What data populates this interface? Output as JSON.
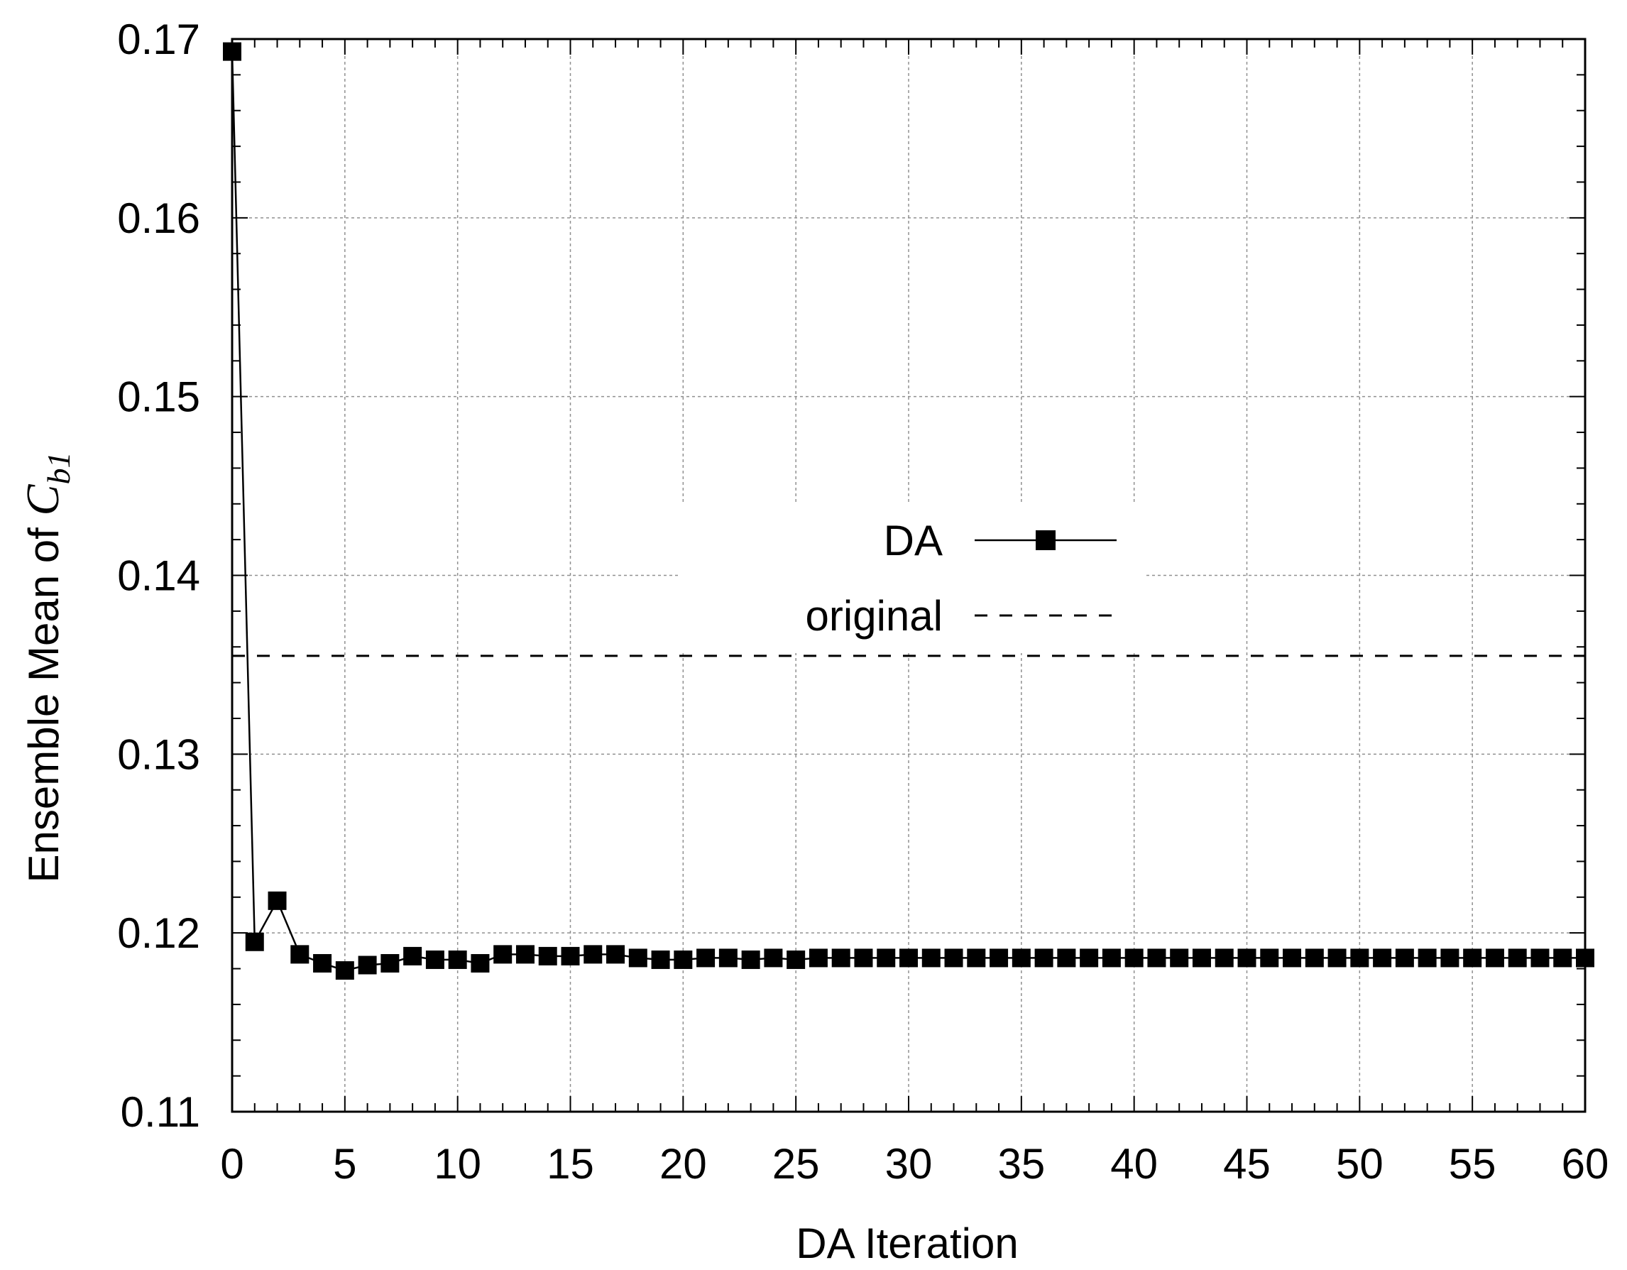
{
  "chart_data": {
    "type": "line",
    "title": "",
    "xlabel": "DA Iteration",
    "ylabel": {
      "prefix": "Ensemble Mean of ",
      "symbol": "C",
      "subscript": "b1"
    },
    "xlim": [
      0,
      60
    ],
    "ylim": [
      0.11,
      0.17
    ],
    "x_ticks": [
      "0",
      "5",
      "10",
      "15",
      "20",
      "25",
      "30",
      "35",
      "40",
      "45",
      "50",
      "55",
      "60"
    ],
    "x_tick_values": [
      0,
      5,
      10,
      15,
      20,
      25,
      30,
      35,
      40,
      45,
      50,
      55,
      60
    ],
    "y_ticks": [
      "0.11",
      "0.12",
      "0.13",
      "0.14",
      "0.15",
      "0.16",
      "0.17"
    ],
    "y_tick_values": [
      0.11,
      0.12,
      0.13,
      0.14,
      0.15,
      0.16,
      0.17
    ],
    "grid": true,
    "legend_position": "center",
    "series": [
      {
        "name": "DA",
        "style": "solid line with filled square markers",
        "color": "#000000",
        "x": [
          0,
          1,
          2,
          3,
          4,
          5,
          6,
          7,
          8,
          9,
          10,
          11,
          12,
          13,
          14,
          15,
          16,
          17,
          18,
          19,
          20,
          21,
          22,
          23,
          24,
          25,
          26,
          27,
          28,
          29,
          30,
          31,
          32,
          33,
          34,
          35,
          36,
          37,
          38,
          39,
          40,
          41,
          42,
          43,
          44,
          45,
          46,
          47,
          48,
          49,
          50,
          51,
          52,
          53,
          54,
          55,
          56,
          57,
          58,
          59,
          60
        ],
        "y": [
          0.1693,
          0.1195,
          0.1218,
          0.1188,
          0.1183,
          0.1179,
          0.1182,
          0.1183,
          0.1187,
          0.1185,
          0.1185,
          0.1183,
          0.1188,
          0.1188,
          0.1187,
          0.1187,
          0.1188,
          0.1188,
          0.1186,
          0.1185,
          0.1185,
          0.1186,
          0.1186,
          0.1185,
          0.1186,
          0.1185,
          0.1186,
          0.1186,
          0.1186,
          0.1186,
          0.1186,
          0.1186,
          0.1186,
          0.1186,
          0.1186,
          0.1186,
          0.1186,
          0.1186,
          0.1186,
          0.1186,
          0.1186,
          0.1186,
          0.1186,
          0.1186,
          0.1186,
          0.1186,
          0.1186,
          0.1186,
          0.1186,
          0.1186,
          0.1186,
          0.1186,
          0.1186,
          0.1186,
          0.1186,
          0.1186,
          0.1186,
          0.1186,
          0.1186,
          0.1186,
          0.1186
        ]
      },
      {
        "name": "original",
        "style": "dashed horizontal line",
        "color": "#000000",
        "y": 0.1355
      }
    ]
  }
}
